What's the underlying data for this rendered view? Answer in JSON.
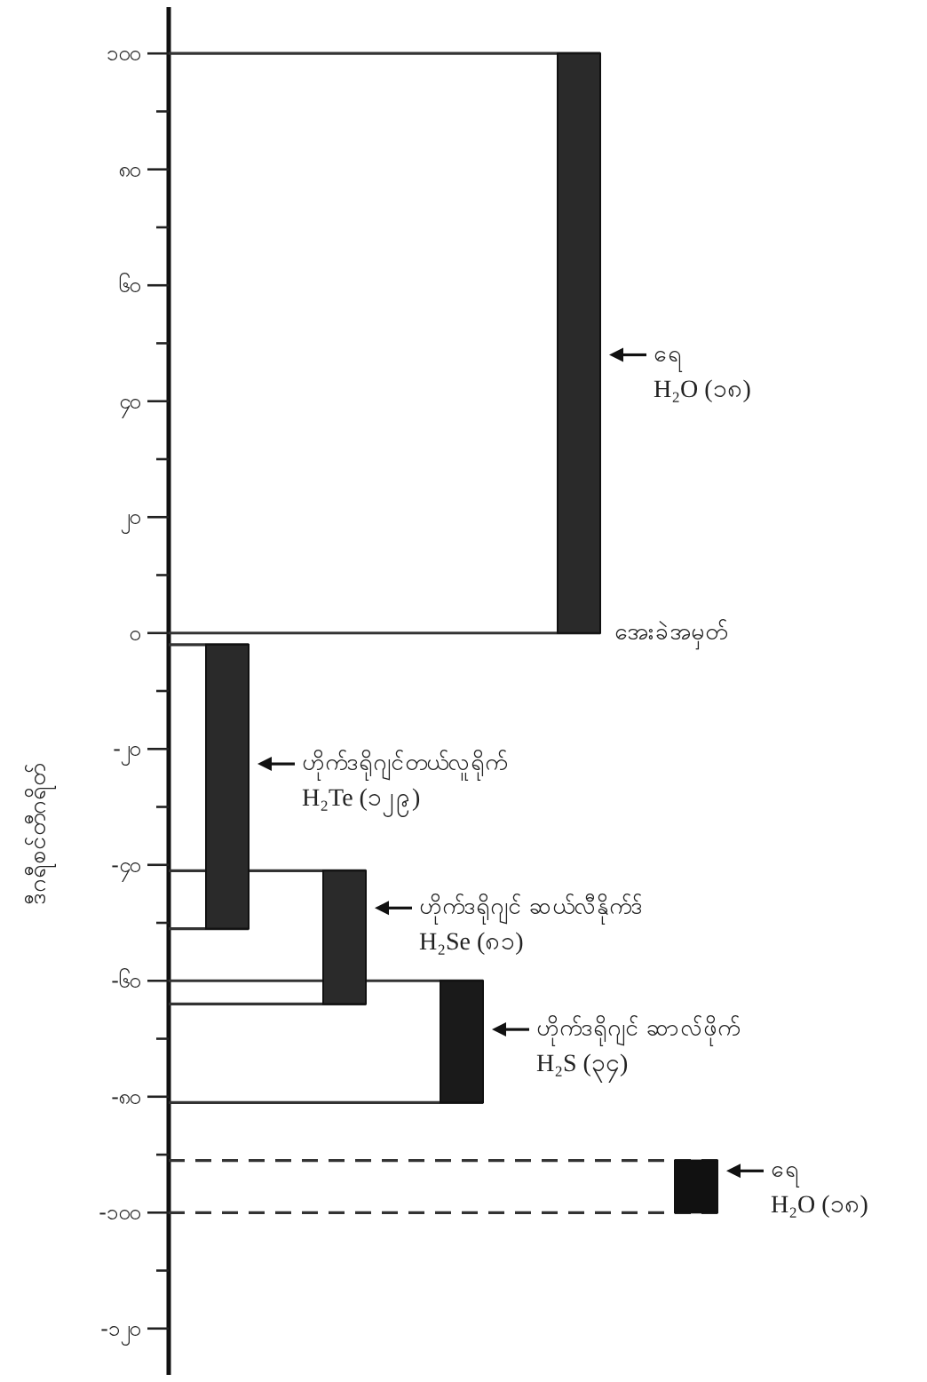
{
  "chart_data": {
    "type": "bar",
    "ylabel": "ဒီဂရီစင်တီဂရိတ်",
    "categories": [
      null,
      null,
      null,
      null,
      null
    ],
    "series": [
      {
        "colors": [
          "#2a2a2a",
          "#2a2a2a",
          "#1a1a1a",
          "#2a2a2a",
          "#111111"
        ],
        "base": [
          -51,
          -64,
          -81,
          0,
          -100
        ],
        "values": [
          49,
          23,
          21,
          100,
          9
        ]
      }
    ],
    "ylim": [
      -128,
      108
    ],
    "yticks": [
      {
        "value": 100,
        "label": "၁၀၀"
      },
      {
        "value": 90,
        "label": null
      },
      {
        "value": 80,
        "label": "၈၀"
      },
      {
        "value": 70,
        "label": null
      },
      {
        "value": 60,
        "label": "၆၀"
      },
      {
        "value": 50,
        "label": null
      },
      {
        "value": 40,
        "label": "၄၀"
      },
      {
        "value": 30,
        "label": null
      },
      {
        "value": 20,
        "label": "၂၀"
      },
      {
        "value": 10,
        "label": null
      },
      {
        "value": 0,
        "label": "၀"
      },
      {
        "value": -10,
        "label": null
      },
      {
        "value": -20,
        "label": "-၂၀"
      },
      {
        "value": -30,
        "label": null
      },
      {
        "value": -40,
        "label": "-၄၀"
      },
      {
        "value": -50,
        "label": null
      },
      {
        "value": -60,
        "label": "-၆၀"
      },
      {
        "value": -70,
        "label": null
      },
      {
        "value": -80,
        "label": "-၈၀"
      },
      {
        "value": -90,
        "label": null
      },
      {
        "value": -100,
        "label": "-၁၀၀"
      },
      {
        "value": -110,
        "label": null
      },
      {
        "value": -120,
        "label": "-၁၂၀"
      }
    ],
    "ref_lines": [
      {
        "axis": "y",
        "value": 100
      },
      {
        "axis": "y",
        "value": 0
      },
      {
        "axis": "y",
        "value": -2
      },
      {
        "axis": "y",
        "value": -51
      },
      {
        "axis": "y",
        "value": -41
      },
      {
        "axis": "y",
        "value": -64
      },
      {
        "axis": "y",
        "value": -60
      },
      {
        "axis": "y",
        "value": -81
      },
      {
        "axis": "y",
        "value": -91,
        "line_style": "dashed"
      },
      {
        "axis": "y",
        "value": -100,
        "line_style": "dashed"
      }
    ],
    "annotations": [
      "ရေ\nH₂O (၁၈)",
      "အေးခဲအမှတ်",
      "ဟိုက်ဒရိုဂျင်တယ်လူရိုက်\nH₂Te (၁၂၉)",
      "ဟိုက်ဒရိုဂျင် ဆယ်လီနိုက်ဒ်\nH₂Se (၈၁)",
      "ဟိုက်ဒရိုဂျင် ဆာလ်ဖိုက်\nH₂S (၃၄)",
      "ရေ\nH₂O (၁၈)"
    ]
  }
}
